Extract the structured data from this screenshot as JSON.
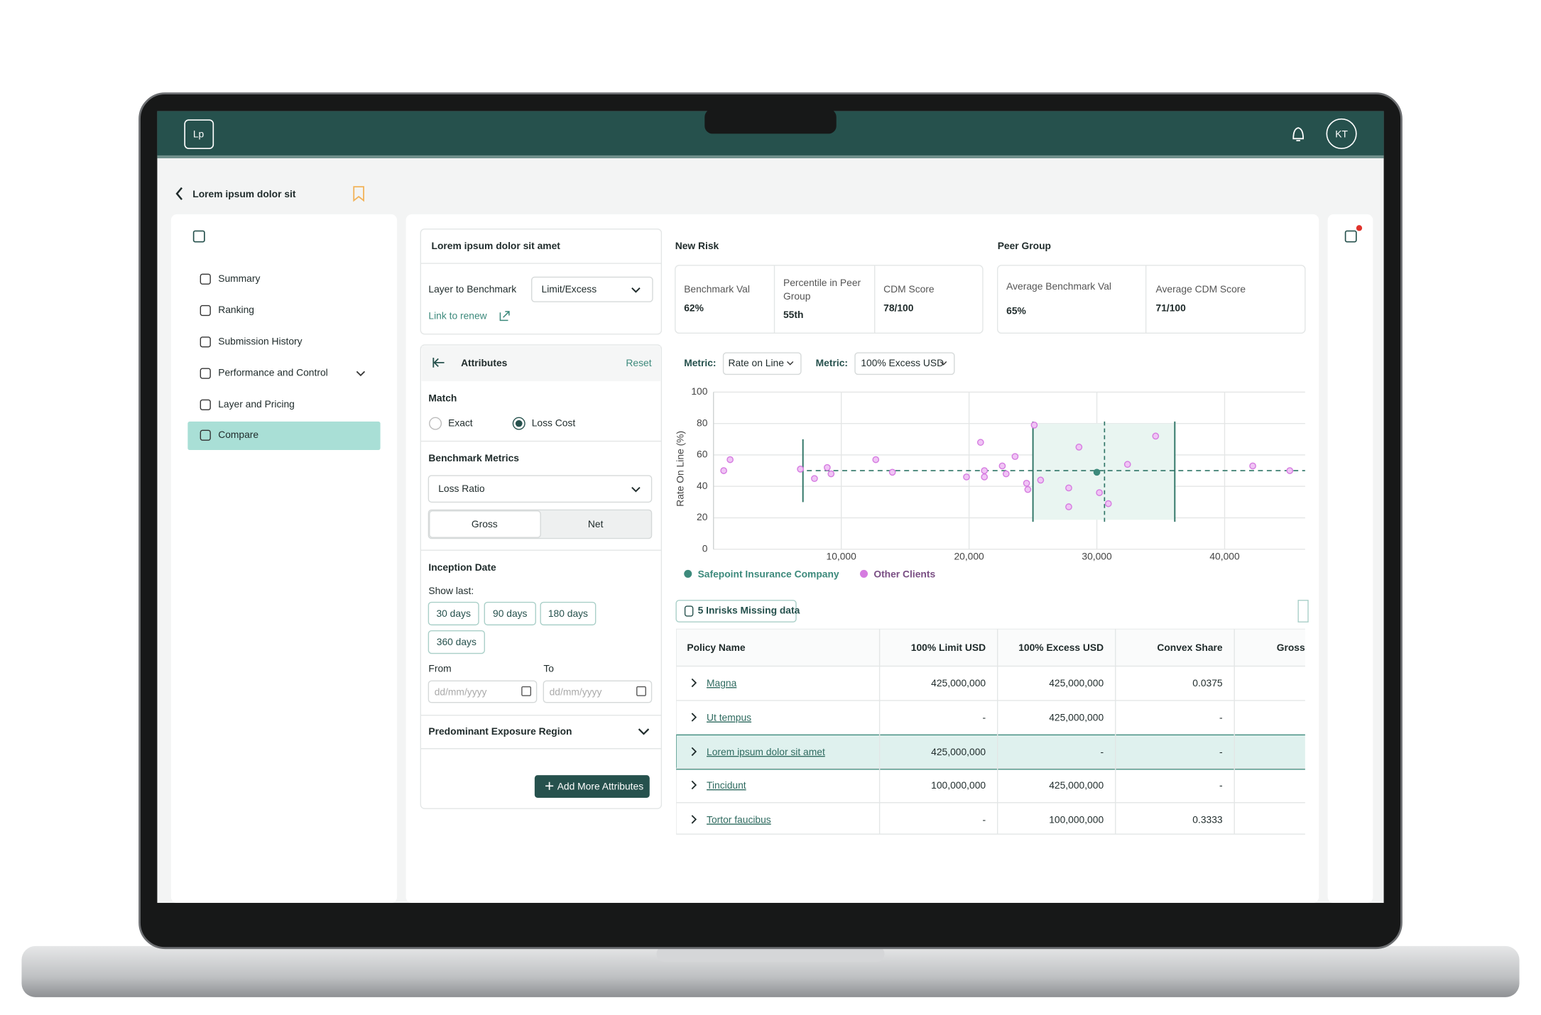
{
  "app": {
    "logo": "Lp",
    "avatar": "KT"
  },
  "page": {
    "title": "Lorem ipsum dolor sit"
  },
  "sidebar": {
    "items": [
      "Summary",
      "Ranking",
      "Submission History",
      "Performance and Control",
      "Layer and Pricing",
      "Compare"
    ]
  },
  "filters": {
    "title": "Lorem ipsum dolor sit amet",
    "layer_label": "Layer to Benchmark",
    "layer_value": "Limit/Excess",
    "link": "Link to renew",
    "attributes": "Attributes",
    "reset": "Reset",
    "match": "Match",
    "match_options": [
      "Exact",
      "Loss Cost"
    ],
    "benchmark_metrics": "Benchmark Metrics",
    "metric_select": "Loss Ratio",
    "toggle": [
      "Gross",
      "Net"
    ],
    "inception": "Inception Date",
    "show_last": "Show last:",
    "days": [
      "30 days",
      "90 days",
      "180 days",
      "360 days"
    ],
    "from": "From",
    "to": "To",
    "date_placeholder": "dd/mm/yyyy",
    "region": "Predominant Exposure Region",
    "add": "Add More Attributes"
  },
  "new_risk": {
    "title": "New Risk",
    "metrics": [
      {
        "label": "Benchmark Val",
        "value": "62%"
      },
      {
        "label": "Percentile in Peer Group",
        "value": "55th"
      },
      {
        "label": "CDM Score",
        "value": "78/100"
      }
    ]
  },
  "peer_group": {
    "title": "Peer Group",
    "metrics": [
      {
        "label": "Average Benchmark Val",
        "value": "65%"
      },
      {
        "label": "Average CDM Score",
        "value": "71/100"
      }
    ]
  },
  "chart_data": {
    "type": "scatter",
    "metric_label": "Metric:",
    "metric_1": "Rate on Line",
    "metric_2": "100% Excess USD",
    "ylabel": "Rate On Line (%)",
    "xlim": [
      0,
      46300
    ],
    "ylim": [
      0,
      100
    ],
    "xticks": [
      {
        "value": 10000,
        "label": "10,000"
      },
      {
        "value": 20000,
        "label": "20,000"
      },
      {
        "value": 30000,
        "label": "30,000"
      },
      {
        "value": 40000,
        "label": "40,000"
      }
    ],
    "yticks": [
      0,
      20,
      40,
      60,
      80,
      100
    ],
    "grid": true,
    "reference_lines": {
      "y": 50,
      "x": [
        7000,
        25000,
        36100
      ],
      "x_dashed": 30600
    },
    "series": [
      {
        "name": "Safepoint Insurance Company",
        "color": "#3d8a7c",
        "x": [
          30000
        ],
        "y": [
          49
        ]
      },
      {
        "name": "Other Clients",
        "color": "#d57be0",
        "x": [
          800,
          1300,
          6800,
          7900,
          8900,
          9200,
          12700,
          14000,
          19800,
          20900,
          21200,
          21200,
          22600,
          22900,
          23600,
          24500,
          24600,
          25100,
          25600,
          27800,
          27800,
          28600,
          30200,
          30900,
          32400,
          34600,
          42200,
          45100
        ],
        "y": [
          50,
          57,
          51,
          45,
          52,
          48,
          57,
          49,
          46,
          68,
          50,
          46,
          53,
          48,
          59,
          42,
          38,
          79,
          44,
          39,
          27,
          65,
          36,
          29,
          54,
          72,
          53,
          50
        ]
      }
    ]
  },
  "table": {
    "missing": "5 Inrisks Missing data",
    "columns": [
      "Policy Name",
      "100% Limit USD",
      "100% Excess USD",
      "Convex  Share",
      "Gross"
    ],
    "rows": [
      [
        "Magna",
        "425,000,000",
        "425,000,000",
        "0.0375"
      ],
      [
        "Ut tempus",
        "-",
        "425,000,000",
        "-"
      ],
      [
        "Lorem ipsum dolor sit amet",
        "425,000,000",
        "-",
        "-"
      ],
      [
        "Tincidunt",
        "100,000,000",
        "425,000,000",
        "-"
      ],
      [
        "Tortor faucibus",
        "-",
        "100,000,000",
        "0.3333"
      ]
    ]
  }
}
